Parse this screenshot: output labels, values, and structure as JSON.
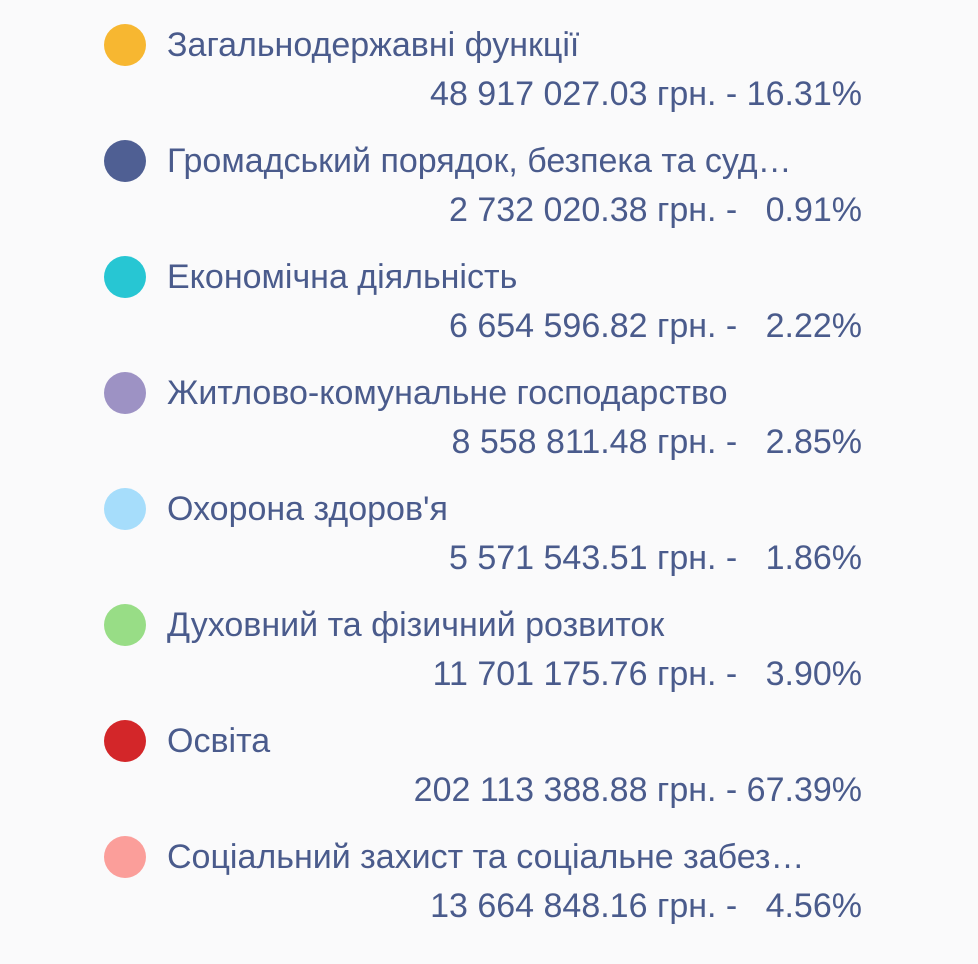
{
  "legend": {
    "items": [
      {
        "label": "Загальнодержавні функції",
        "value": "48 917 027.03 грн. - 16.31%",
        "color": "#f7b731"
      },
      {
        "label": "Громадський порядок, безпека та суд…",
        "value": "2 732 020.38 грн. -   0.91%",
        "color": "#4f5f93"
      },
      {
        "label": "Економічна діяльність",
        "value": "6 654 596.82 грн. -   2.22%",
        "color": "#27c6d3"
      },
      {
        "label": "Житлово-комунальне господарство",
        "value": "8 558 811.48 грн. -   2.85%",
        "color": "#9d92c4"
      },
      {
        "label": "Охорона здоров'я",
        "value": "5 571 543.51 грн. -   1.86%",
        "color": "#a6ddfb"
      },
      {
        "label": "Духовний та фізичний розвиток",
        "value": "11 701 175.76 грн. -   3.90%",
        "color": "#98dd86"
      },
      {
        "label": "Освіта",
        "value": "202 113 388.88 грн. - 67.39%",
        "color": "#d32629"
      },
      {
        "label": "Соціальний захист та соціальне забез…",
        "value": "13 664 848.16 грн. -   4.56%",
        "color": "#fb9e9a"
      }
    ]
  }
}
